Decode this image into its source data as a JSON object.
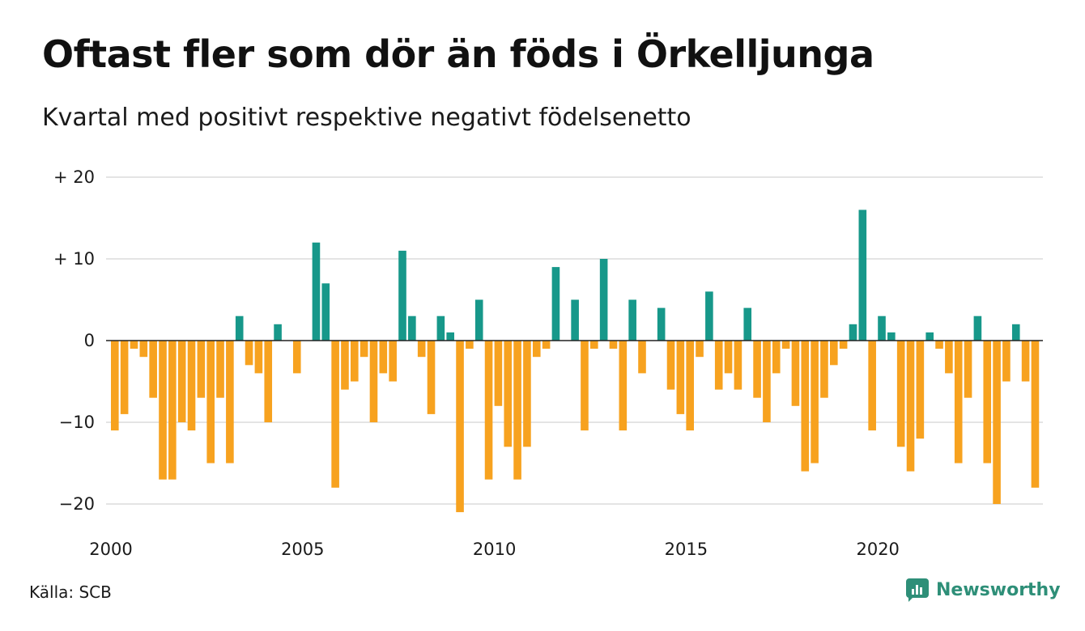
{
  "title": "Oftast fler som dör än föds i Örkelljunga",
  "subtitle": "Kvartal med positivt respektive negativt födelsenetto",
  "source": "Källa: SCB",
  "brand": {
    "name": "Newsworthy",
    "icon": "newsworthy-logo-icon",
    "color": "#2e8f78"
  },
  "colors": {
    "positive": "#17988a",
    "negative": "#f7a21f",
    "grid": "#dcdcdc",
    "axis": "#222222"
  },
  "chart_data": {
    "type": "bar",
    "title": "Oftast fler som dör än föds i Örkelljunga",
    "subtitle": "Kvartal med positivt respektive negativt födelsenetto",
    "xlabel": "",
    "ylabel": "",
    "ylim": [
      -22,
      22
    ],
    "grid": true,
    "y_ticks": [
      {
        "value": 20,
        "label": "+ 20"
      },
      {
        "value": 10,
        "label": "+ 10"
      },
      {
        "value": 0,
        "label": "0"
      },
      {
        "value": -10,
        "label": "−10"
      },
      {
        "value": -20,
        "label": "−20"
      }
    ],
    "x_ticks": [
      "2000",
      "2005",
      "2010",
      "2015",
      "2020"
    ],
    "period_start": "2000 Q1",
    "frequency": "quarterly",
    "values": [
      -11,
      -9,
      -1,
      -2,
      -7,
      -17,
      -17,
      -10,
      -11,
      -7,
      -15,
      -7,
      -15,
      3,
      -3,
      -4,
      -10,
      2,
      0,
      -4,
      0,
      12,
      7,
      -18,
      -6,
      -5,
      -2,
      -10,
      -4,
      -5,
      11,
      3,
      -2,
      -9,
      3,
      1,
      -21,
      -1,
      5,
      -17,
      -8,
      -13,
      -17,
      -13,
      -2,
      -1,
      9,
      0,
      5,
      -11,
      -1,
      10,
      -1,
      -11,
      5,
      -4,
      0,
      4,
      -6,
      -9,
      -11,
      -2,
      6,
      -6,
      -4,
      -6,
      4,
      -7,
      -10,
      -4,
      -1,
      -8,
      -16,
      -15,
      -7,
      -3,
      -1,
      2,
      16,
      -11,
      3,
      1,
      -13,
      -16,
      -12,
      1,
      -1,
      -4,
      -15,
      -7,
      3,
      -15,
      -20,
      -5,
      2,
      -5,
      -18
    ]
  }
}
